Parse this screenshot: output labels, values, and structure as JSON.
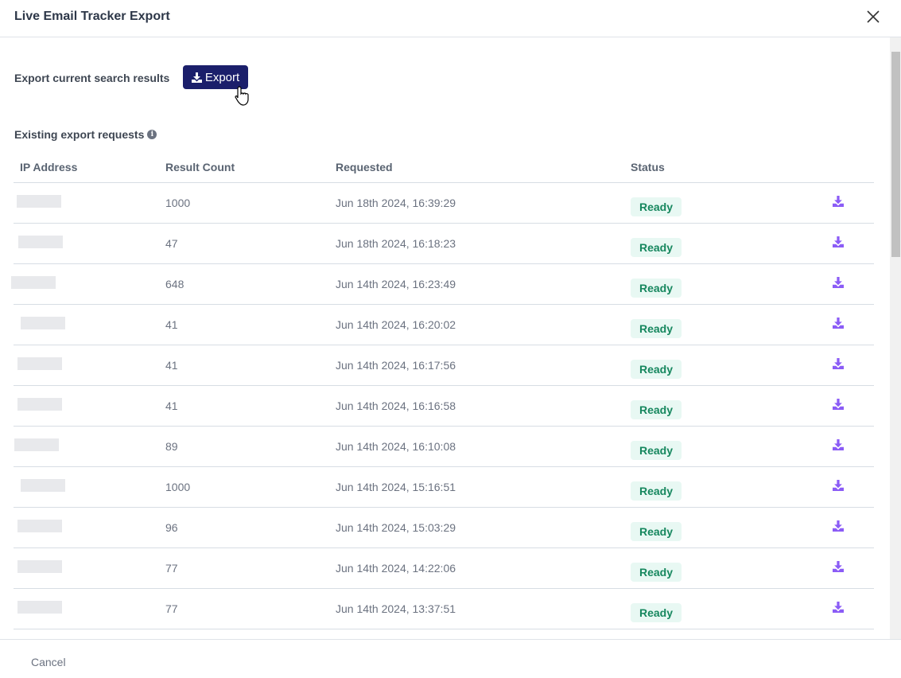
{
  "dialog": {
    "title": "Live Email Tracker Export",
    "cancel_label": "Cancel"
  },
  "export": {
    "label": "Export current search results",
    "button_label": "Export"
  },
  "existing": {
    "title": "Existing export requests"
  },
  "table": {
    "columns": [
      "IP Address",
      "Result Count",
      "Requested",
      "Status"
    ],
    "rows": [
      {
        "count": "1000",
        "requested": "Jun 18th 2024, 16:39:29",
        "status": "Ready"
      },
      {
        "count": "47",
        "requested": "Jun 18th 2024, 16:18:23",
        "status": "Ready"
      },
      {
        "count": "648",
        "requested": "Jun 14th 2024, 16:23:49",
        "status": "Ready"
      },
      {
        "count": "41",
        "requested": "Jun 14th 2024, 16:20:02",
        "status": "Ready"
      },
      {
        "count": "41",
        "requested": "Jun 14th 2024, 16:17:56",
        "status": "Ready"
      },
      {
        "count": "41",
        "requested": "Jun 14th 2024, 16:16:58",
        "status": "Ready"
      },
      {
        "count": "89",
        "requested": "Jun 14th 2024, 16:10:08",
        "status": "Ready"
      },
      {
        "count": "1000",
        "requested": "Jun 14th 2024, 15:16:51",
        "status": "Ready"
      },
      {
        "count": "96",
        "requested": "Jun 14th 2024, 15:03:29",
        "status": "Ready"
      },
      {
        "count": "77",
        "requested": "Jun 14th 2024, 14:22:06",
        "status": "Ready"
      },
      {
        "count": "77",
        "requested": "Jun 14th 2024, 13:37:51",
        "status": "Ready"
      }
    ]
  },
  "colors": {
    "primary": "#1b1f6b",
    "ready_bg": "#e8f8f3",
    "ready_text": "#16875e",
    "download_icon": "#8b5cf6"
  }
}
